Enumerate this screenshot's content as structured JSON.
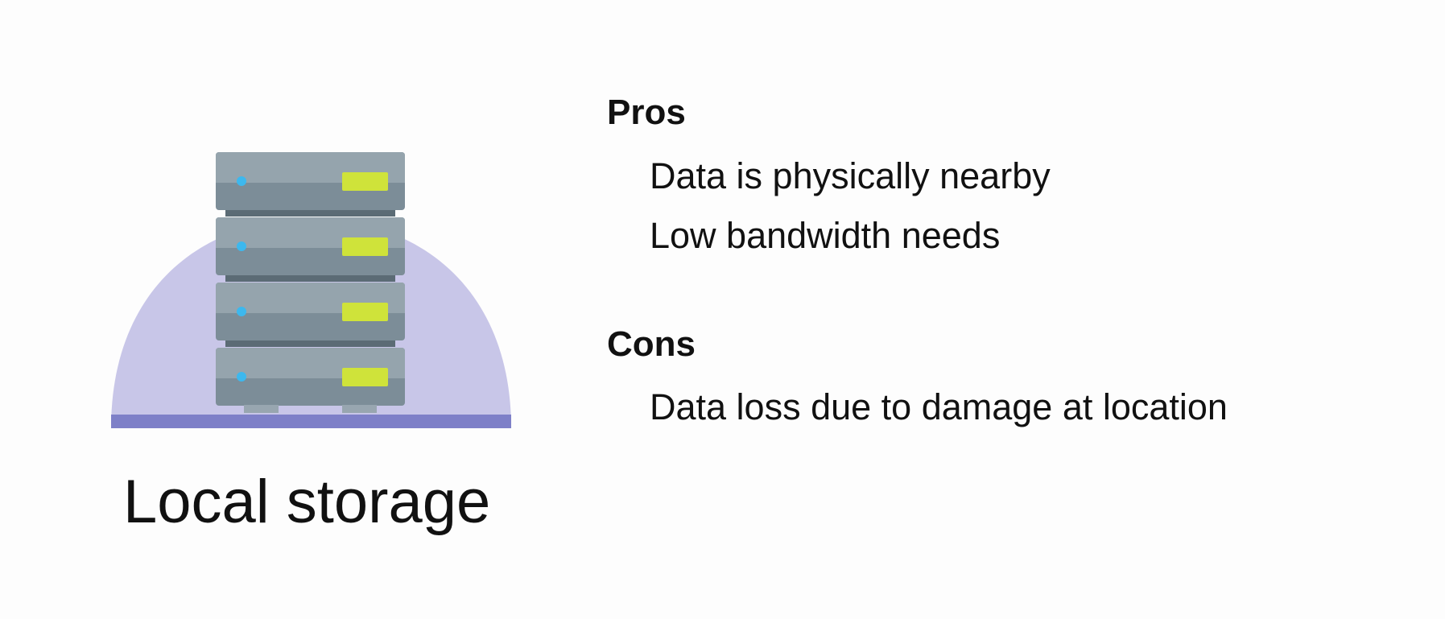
{
  "illustration": {
    "icon": "server-rack-icon",
    "colors": {
      "dome": "#c8c6e8",
      "base": "#7e80c8",
      "server_top": "#95a4ad",
      "server_bottom": "#7c8d98",
      "separator": "#5b6b75",
      "led": "#3db8ee",
      "drive_bay": "#cfe33a"
    }
  },
  "caption": "Local storage",
  "pros": {
    "heading": "Pros",
    "items": [
      "Data is physically nearby",
      "Low bandwidth needs"
    ]
  },
  "cons": {
    "heading": "Cons",
    "items": [
      "Data loss due to damage at location"
    ]
  }
}
